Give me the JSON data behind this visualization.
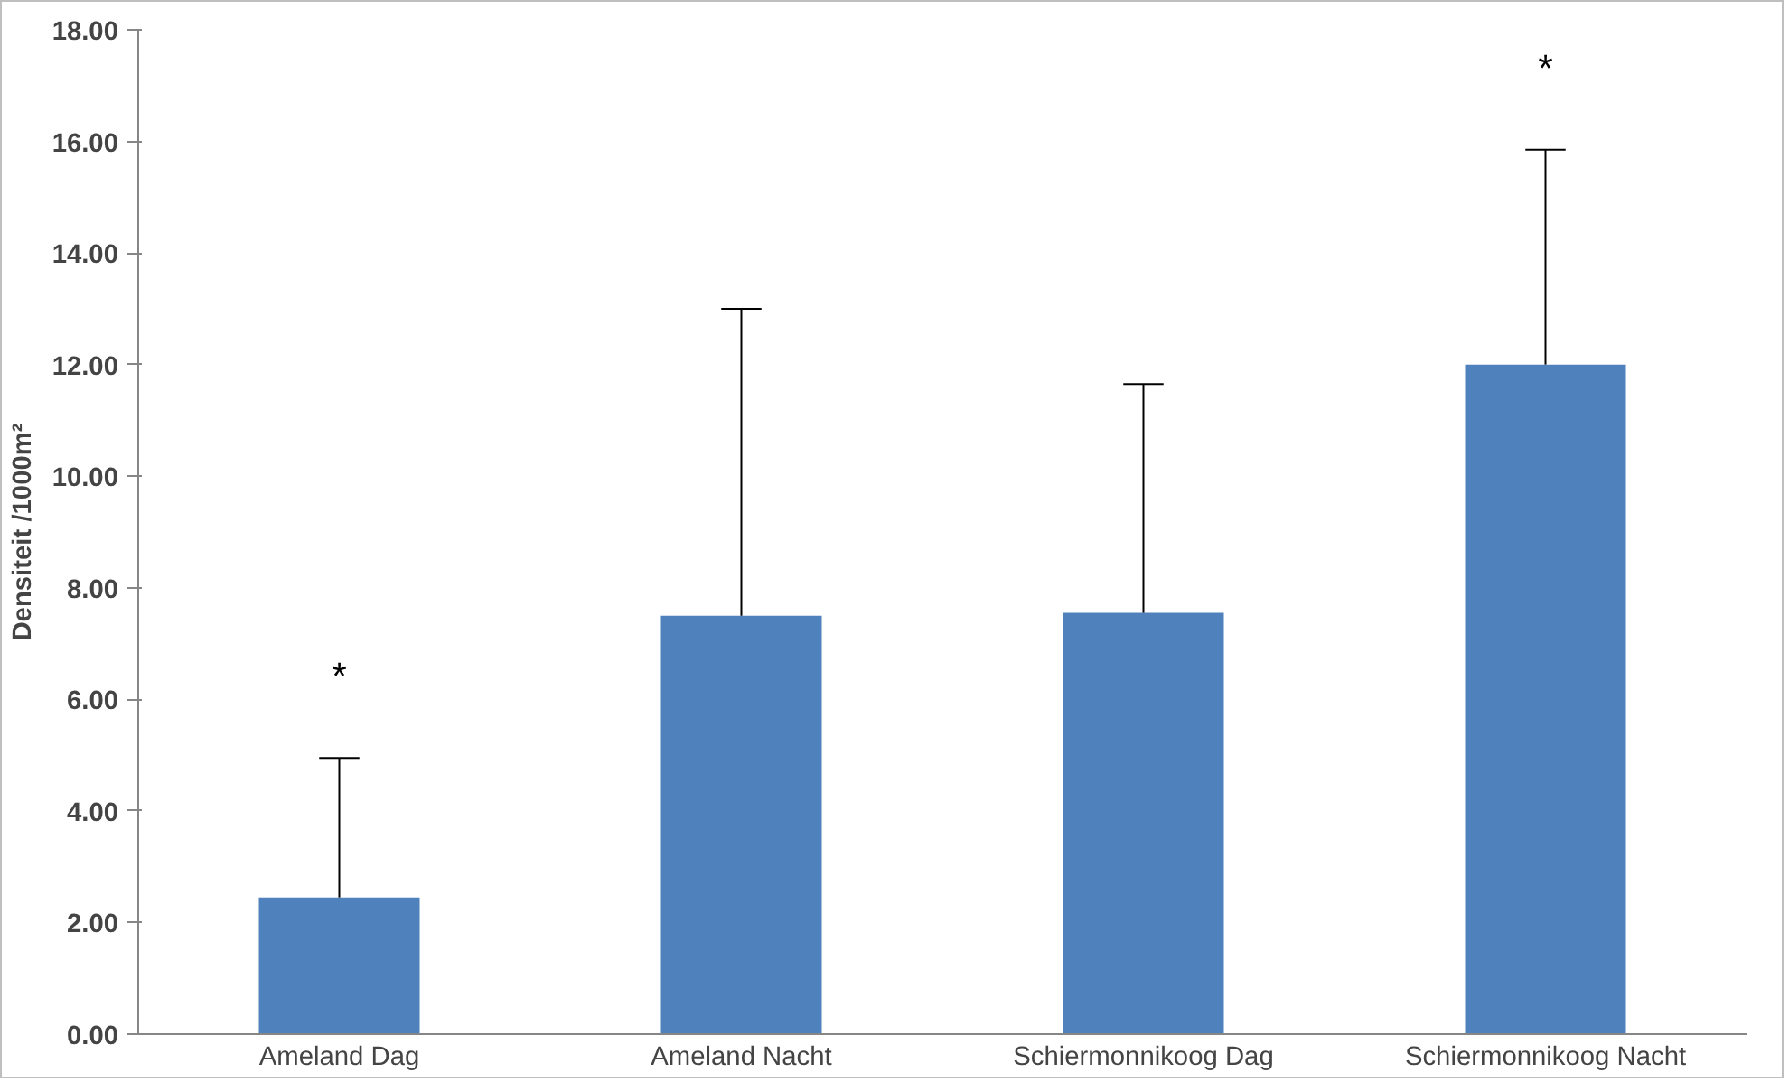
{
  "chart_data": {
    "type": "bar",
    "ylabel": "Densiteit /1000m²",
    "categories": [
      "Ameland Dag",
      "Ameland Nacht",
      "Schiermonnikoog Dag",
      "Schiermonnikoog Nacht"
    ],
    "values": [
      2.45,
      7.5,
      7.55,
      12.0
    ],
    "color": "#4f81bd",
    "errors": [
      [
        2.45,
        4.95
      ],
      [
        7.5,
        13.0
      ],
      [
        7.55,
        11.65
      ],
      [
        12.0,
        15.85
      ]
    ],
    "ylim": [
      0,
      18
    ],
    "yticks": [
      {
        "value": 0,
        "label": "0.00"
      },
      {
        "value": 2,
        "label": "2.00"
      },
      {
        "value": 4,
        "label": "4.00"
      },
      {
        "value": 6,
        "label": "6.00"
      },
      {
        "value": 8,
        "label": "8.00"
      },
      {
        "value": 10,
        "label": "10.00"
      },
      {
        "value": 12,
        "label": "12.00"
      },
      {
        "value": 14,
        "label": "14.00"
      },
      {
        "value": 16,
        "label": "16.00"
      },
      {
        "value": 18,
        "label": "18.00"
      }
    ],
    "grid": false,
    "annotations": [
      {
        "text": "*",
        "x": "Ameland Dag",
        "y": 4.95
      },
      {
        "text": "*",
        "x": "Schiermonnikoog Nacht",
        "y": 15.85
      }
    ]
  }
}
